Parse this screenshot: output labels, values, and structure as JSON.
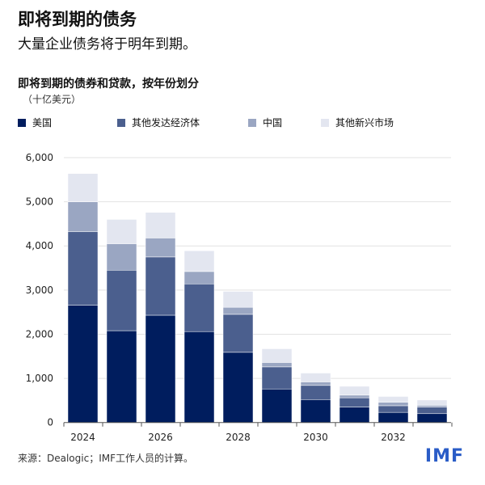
{
  "title": "即将到期的债务",
  "subtitle": "大量企业债务将于明年到期。",
  "source": "来源：Dealogic；IMF工作人员的计算。",
  "logo": "IMF",
  "chart_data": {
    "type": "bar",
    "stacked": true,
    "title": "即将到期的债券和贷款，按年份划分",
    "ylabel": "（十亿美元）",
    "ylim": [
      0,
      6000
    ],
    "yticks": [
      0,
      1000,
      2000,
      3000,
      4000,
      5000,
      6000
    ],
    "ytick_labels": [
      "0",
      "1,000",
      "2,000",
      "3,000",
      "4,000",
      "5,000",
      "6,000"
    ],
    "categories": [
      2024,
      2025,
      2026,
      2027,
      2028,
      2029,
      2030,
      2031,
      2032,
      2033
    ],
    "xtick_labels": [
      "2024",
      "2026",
      "2028",
      "2030",
      "2032"
    ],
    "grid": true,
    "legend_position": "top",
    "series": [
      {
        "name": "美国",
        "color": "#001d5e",
        "values": [
          2660,
          2080,
          2430,
          2060,
          1590,
          760,
          520,
          350,
          230,
          200
        ]
      },
      {
        "name": "其他发达经济体",
        "color": "#4b5f8e",
        "values": [
          1660,
          1370,
          1320,
          1080,
          860,
          500,
          320,
          210,
          150,
          150
        ]
      },
      {
        "name": "中国",
        "color": "#9aa6c2",
        "values": [
          680,
          600,
          430,
          280,
          160,
          100,
          80,
          60,
          80,
          40
        ]
      },
      {
        "name": "其他新兴市场",
        "color": "#e3e6f0",
        "values": [
          640,
          550,
          580,
          470,
          360,
          310,
          200,
          200,
          130,
          120
        ]
      }
    ]
  }
}
